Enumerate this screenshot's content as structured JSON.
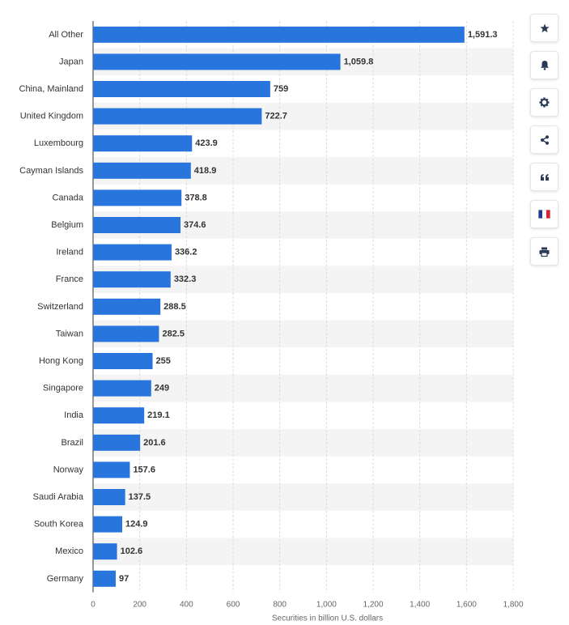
{
  "chart_data": {
    "type": "bar",
    "orientation": "horizontal",
    "categories": [
      "All Other",
      "Japan",
      "China, Mainland",
      "United Kingdom",
      "Luxembourg",
      "Cayman Islands",
      "Canada",
      "Belgium",
      "Ireland",
      "France",
      "Switzerland",
      "Taiwan",
      "Hong Kong",
      "Singapore",
      "India",
      "Brazil",
      "Norway",
      "Saudi Arabia",
      "South Korea",
      "Mexico",
      "Germany"
    ],
    "values": [
      1591.3,
      1059.8,
      759,
      722.7,
      423.9,
      418.9,
      378.8,
      374.6,
      336.2,
      332.3,
      288.5,
      282.5,
      255,
      249,
      219.1,
      201.6,
      157.6,
      137.5,
      124.9,
      102.6,
      97
    ],
    "value_labels": [
      "1,591.3",
      "1,059.8",
      "759",
      "722.7",
      "423.9",
      "418.9",
      "378.8",
      "374.6",
      "336.2",
      "332.3",
      "288.5",
      "282.5",
      "255",
      "249",
      "219.1",
      "201.6",
      "157.6",
      "137.5",
      "124.9",
      "102.6",
      "97"
    ],
    "xlabel": "Securities in billion U.S. dollars",
    "ylabel": "",
    "xlim": [
      0,
      1800
    ],
    "xticks": [
      0,
      200,
      400,
      600,
      800,
      1000,
      1200,
      1400,
      1600,
      1800
    ],
    "xtick_labels": [
      "0",
      "200",
      "400",
      "600",
      "800",
      "1,000",
      "1,200",
      "1,400",
      "1,600",
      "1,800"
    ],
    "grid": true,
    "legend": "none",
    "bar_color": "#2876dd"
  },
  "toolbar": {
    "buttons": [
      {
        "name": "star-icon"
      },
      {
        "name": "bell-icon"
      },
      {
        "name": "gear-icon"
      },
      {
        "name": "share-icon"
      },
      {
        "name": "quote-icon"
      },
      {
        "name": "french-flag-icon"
      },
      {
        "name": "print-icon"
      }
    ]
  }
}
